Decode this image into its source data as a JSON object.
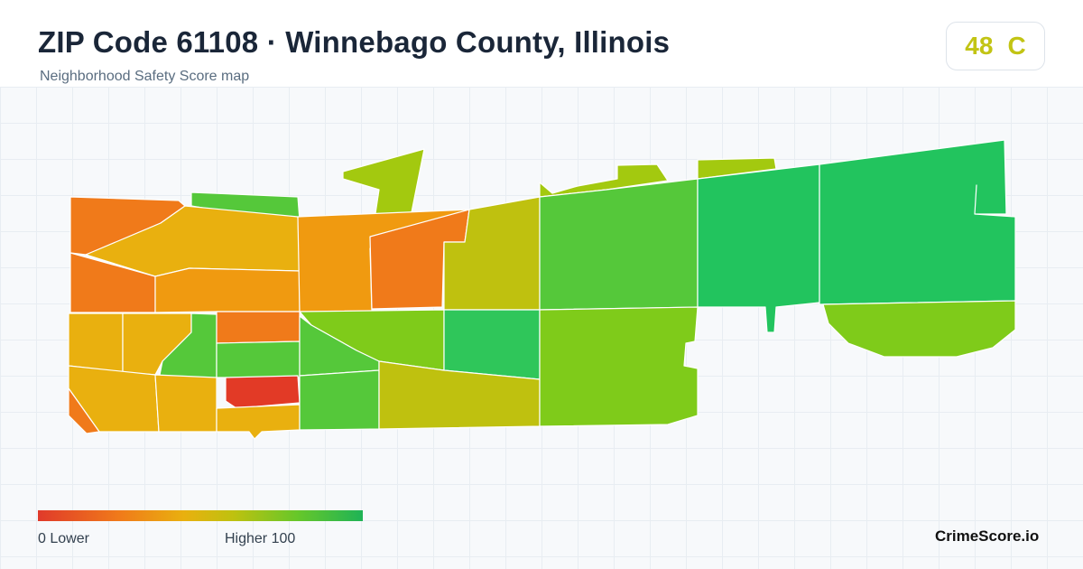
{
  "header": {
    "title": "ZIP Code 61108 · Winnebago County, Illinois",
    "subtitle": "Neighborhood Safety Score map"
  },
  "score": {
    "value": "48",
    "grade": "C",
    "color": "#c2c414"
  },
  "legend": {
    "low_label": "0  Lower",
    "high_label": "Higher  100",
    "colors": [
      "#e03a2a",
      "#f07a1a",
      "#e9b00f",
      "#bfc10f",
      "#66c72a",
      "#1fb356"
    ]
  },
  "brand": "CrimeScore.io",
  "map": {
    "region_colors": {
      "red": "#e23a26",
      "red_orange": "#f07a1a",
      "orange": "#f09a10",
      "amber": "#e9b00f",
      "olive": "#bfc10f",
      "yellow_green": "#a3c90f",
      "lime": "#7fcb1a",
      "green": "#55c83a",
      "emerald": "#2fc65a",
      "teal_green": "#22c45e"
    }
  }
}
